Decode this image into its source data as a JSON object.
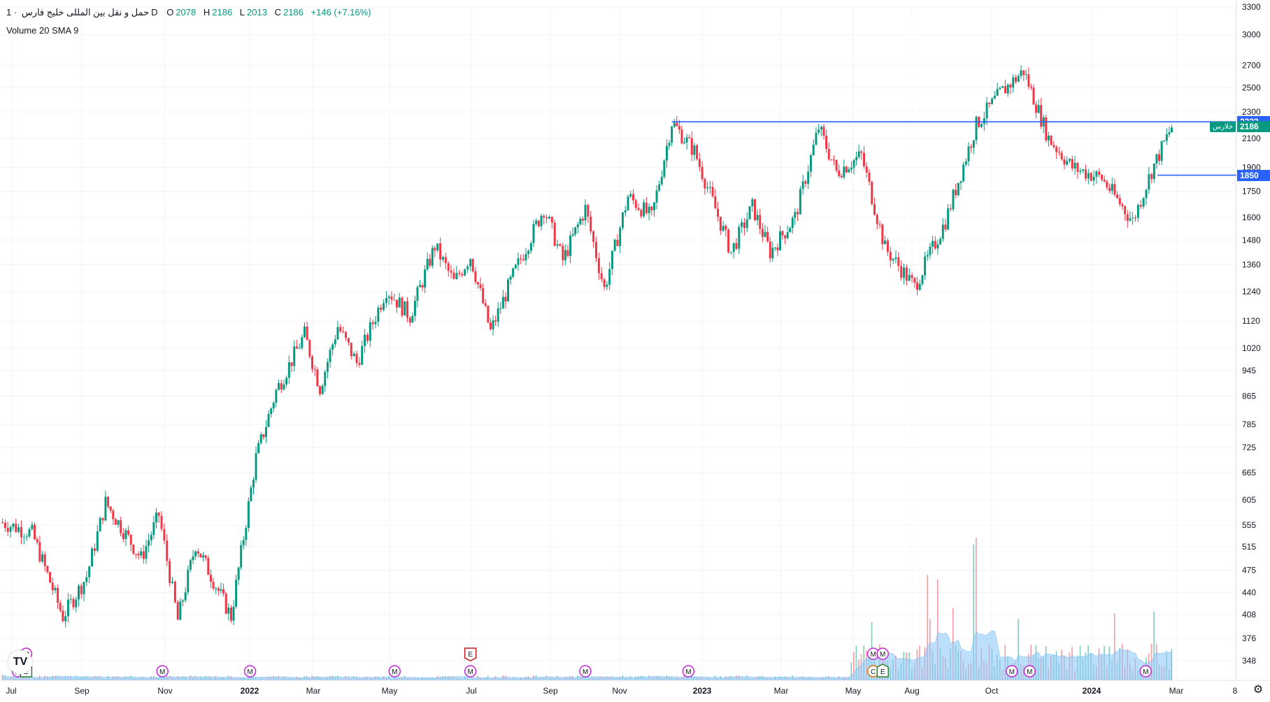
{
  "header": {
    "symbol": "حمل و نقل بین المللی خلیج فارس",
    "separator": "·",
    "interval": "1D",
    "open_key": "O",
    "open": "2078",
    "high_key": "H",
    "high": "2186",
    "low_key": "L",
    "low": "2013",
    "close_key": "C",
    "close": "2186",
    "change": "+146 (+7.16%)",
    "volume_indicator": "Volume 20 SMA 9"
  },
  "colors": {
    "up": "#089981",
    "down": "#f23645",
    "line": "#2962ff",
    "volume_sma_fill": "#90caf9",
    "grid": "#f0f3fa"
  },
  "price_badges": {
    "resistance": "2223",
    "last_price": "2186",
    "support": "1850",
    "symbol_tag": "خلارس"
  },
  "chart_data": {
    "type": "candlestick",
    "interval": "1D",
    "y_scale": "log",
    "y_ticks": [
      "3300",
      "3000",
      "2700",
      "2500",
      "2300",
      "2100",
      "1900",
      "1750",
      "1600",
      "1480",
      "1360",
      "1240",
      "1120",
      "1020",
      "945",
      "865",
      "785",
      "725",
      "665",
      "605",
      "555",
      "515",
      "475",
      "440",
      "408",
      "376",
      "348"
    ],
    "x_ticks": [
      "Jul",
      "Sep",
      "Nov",
      "2022",
      "Mar",
      "May",
      "Jul",
      "Sep",
      "Nov",
      "2023",
      "Mar",
      "May",
      "Aug",
      "Oct",
      "2024",
      "Mar",
      "8"
    ],
    "price_path_approx": [
      {
        "t": "2021-06-15",
        "close": 560
      },
      {
        "t": "2021-07-10",
        "close": 540
      },
      {
        "t": "2021-08-05",
        "close": 405
      },
      {
        "t": "2021-08-25",
        "close": 465
      },
      {
        "t": "2021-09-10",
        "close": 600
      },
      {
        "t": "2021-10-10",
        "close": 495
      },
      {
        "t": "2021-10-25",
        "close": 575
      },
      {
        "t": "2021-11-10",
        "close": 400
      },
      {
        "t": "2021-11-25",
        "close": 520
      },
      {
        "t": "2021-12-25",
        "close": 405
      },
      {
        "t": "2022-01-15",
        "close": 700
      },
      {
        "t": "2022-02-01",
        "close": 880
      },
      {
        "t": "2022-02-25",
        "close": 1070
      },
      {
        "t": "2022-03-10",
        "close": 890
      },
      {
        "t": "2022-03-25",
        "close": 1100
      },
      {
        "t": "2022-04-10",
        "close": 970
      },
      {
        "t": "2022-05-05",
        "close": 1250
      },
      {
        "t": "2022-05-25",
        "close": 1140
      },
      {
        "t": "2022-06-15",
        "close": 1450
      },
      {
        "t": "2022-07-01",
        "close": 1280
      },
      {
        "t": "2022-07-15",
        "close": 1400
      },
      {
        "t": "2022-08-01",
        "close": 1080
      },
      {
        "t": "2022-08-20",
        "close": 1310
      },
      {
        "t": "2022-09-15",
        "close": 1650
      },
      {
        "t": "2022-10-01",
        "close": 1380
      },
      {
        "t": "2022-10-20",
        "close": 1650
      },
      {
        "t": "2022-11-05",
        "close": 1250
      },
      {
        "t": "2022-11-25",
        "close": 1720
      },
      {
        "t": "2022-12-15",
        "close": 1600
      },
      {
        "t": "2023-01-01",
        "close": 2220
      },
      {
        "t": "2023-01-20",
        "close": 2010
      },
      {
        "t": "2023-02-20",
        "close": 1420
      },
      {
        "t": "2023-03-10",
        "close": 1660
      },
      {
        "t": "2023-03-25",
        "close": 1420
      },
      {
        "t": "2023-04-15",
        "close": 1600
      },
      {
        "t": "2023-05-05",
        "close": 2180
      },
      {
        "t": "2023-05-20",
        "close": 1870
      },
      {
        "t": "2023-06-10",
        "close": 1980
      },
      {
        "t": "2023-06-30",
        "close": 1440
      },
      {
        "t": "2023-07-25",
        "close": 1260
      },
      {
        "t": "2023-08-20",
        "close": 1580
      },
      {
        "t": "2023-09-15",
        "close": 2200
      },
      {
        "t": "2023-10-05",
        "close": 2450
      },
      {
        "t": "2023-10-25",
        "close": 2650
      },
      {
        "t": "2023-11-15",
        "close": 2100
      },
      {
        "t": "2023-12-05",
        "close": 1900
      },
      {
        "t": "2023-12-30",
        "close": 1830
      },
      {
        "t": "2024-01-25",
        "close": 1580
      },
      {
        "t": "2024-02-10",
        "close": 1880
      },
      {
        "t": "2024-02-27",
        "close": 2186
      }
    ],
    "horizontal_lines": [
      {
        "price": 2223,
        "from": "2023-01-01"
      },
      {
        "price": 1850,
        "from": "2024-02-15"
      }
    ],
    "volume_sma_enabled": true,
    "volume_sma_length": 9
  },
  "event_markers": [
    {
      "kind": "M",
      "date": "2021-07-05",
      "row": "upper"
    },
    {
      "kind": "M",
      "date": "2021-06-28",
      "row": "lower"
    },
    {
      "kind": "E",
      "date": "2021-07-05",
      "row": "lower"
    },
    {
      "kind": "M",
      "date": "2021-10-28",
      "row": "lower"
    },
    {
      "kind": "M",
      "date": "2022-01-10",
      "row": "lower"
    },
    {
      "kind": "M",
      "date": "2022-05-12",
      "row": "lower"
    },
    {
      "kind": "M",
      "date": "2022-07-15",
      "row": "lower"
    },
    {
      "kind": "E",
      "date": "2022-07-15",
      "row": "flag"
    },
    {
      "kind": "M",
      "date": "2022-10-20",
      "row": "lower"
    },
    {
      "kind": "M",
      "date": "2023-01-15",
      "row": "lower"
    },
    {
      "kind": "M",
      "date": "2023-06-20",
      "row": "upper"
    },
    {
      "kind": "M",
      "date": "2023-06-28",
      "row": "upper"
    },
    {
      "kind": "C",
      "date": "2023-06-20",
      "row": "lower"
    },
    {
      "kind": "E",
      "date": "2023-06-28",
      "row": "lower"
    },
    {
      "kind": "M",
      "date": "2023-10-15",
      "row": "lower"
    },
    {
      "kind": "M",
      "date": "2023-10-30",
      "row": "lower"
    },
    {
      "kind": "M",
      "date": "2024-02-05",
      "row": "lower"
    }
  ],
  "logo": "TV",
  "settings_icon": "gear-icon"
}
